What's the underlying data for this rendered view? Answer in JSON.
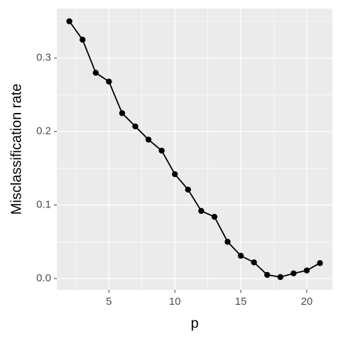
{
  "chart_data": {
    "type": "line",
    "x_label": "p",
    "y_label": "Misclassification rate",
    "x": [
      2,
      3,
      4,
      5,
      6,
      7,
      8,
      9,
      10,
      11,
      12,
      13,
      14,
      15,
      16,
      17,
      18,
      19,
      20,
      21
    ],
    "series": [
      {
        "color": "#000000",
        "values": [
          0.35,
          0.325,
          0.28,
          0.268,
          0.225,
          0.207,
          0.189,
          0.174,
          0.142,
          0.121,
          0.092,
          0.084,
          0.05,
          0.031,
          0.022,
          0.005,
          0.002,
          0.007,
          0.011,
          0.021
        ]
      }
    ],
    "xlim": [
      1.05,
      21.95
    ],
    "xticks": [
      5,
      10,
      15,
      20
    ],
    "ylim": [
      -0.0154,
      0.3674
    ],
    "yticks": [
      {
        "value": 0,
        "label": "0.0"
      },
      0.1,
      0.2,
      0.3
    ],
    "grid": true
  }
}
